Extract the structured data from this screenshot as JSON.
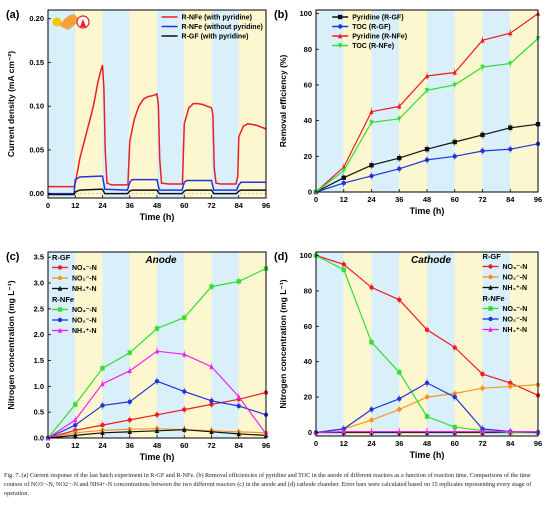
{
  "caption": "Fig. 7. (a) Current response of the last batch experiment in R-GF and R-NFe. (b) Removal efficiencies of pyridine and TOC in the anode of different reactors as a function of reaction time. Comparisons of the time courses of NO3−-N, NO2−-N and NH4+-N concentrations between the two different reactors (c) in the anode and (d) cathode chamber. Error bars were calculated based on 15 replicates representing every stage of operation.",
  "colors": {
    "blue_band": "#d9f0fb",
    "yellow_band": "#fdf7cf",
    "red": "#ee1c24",
    "blue": "#2233dd",
    "black": "#111111",
    "green": "#33dd33",
    "orange": "#f7931e",
    "magenta": "#ee22ee"
  },
  "chart_data": [
    {
      "panel": "(a)",
      "type": "line",
      "xlabel": "Time (h)",
      "ylabel": "Current density (mA cm⁻²)",
      "xlim": [
        0,
        96
      ],
      "ylim": [
        -0.005,
        0.21
      ],
      "xticks": [
        0,
        12,
        24,
        36,
        48,
        60,
        72,
        84,
        96
      ],
      "yticks": [
        0.0,
        0.05,
        0.1,
        0.15,
        0.2
      ],
      "ytick_labels": [
        "0.00",
        "0.05",
        "0.10",
        "0.15",
        "0.20"
      ],
      "legend_position": "top-right",
      "series": [
        {
          "name": "R-NFe (with pyridine)",
          "color": "red",
          "x": [
            0,
            11.5,
            12,
            14,
            17,
            20,
            22,
            23.2,
            24,
            24.6,
            25.2,
            26,
            28,
            31,
            34,
            35.2,
            36,
            38,
            40,
            42,
            44,
            46,
            47.2,
            48,
            48.6,
            49.2,
            50,
            53,
            57,
            59.2,
            60,
            62,
            64,
            66,
            68,
            70,
            71.2,
            72,
            72.6,
            73.2,
            74,
            76,
            80,
            82.8,
            83.6,
            84,
            86,
            88,
            90,
            92,
            94,
            95,
            96
          ],
          "y": [
            0.008,
            0.008,
            0.012,
            0.04,
            0.07,
            0.1,
            0.128,
            0.14,
            0.147,
            0.12,
            0.05,
            0.012,
            0.01,
            0.01,
            0.01,
            0.01,
            0.06,
            0.085,
            0.1,
            0.108,
            0.111,
            0.112,
            0.113,
            0.114,
            0.1,
            0.04,
            0.012,
            0.011,
            0.011,
            0.011,
            0.08,
            0.098,
            0.103,
            0.103,
            0.102,
            0.1,
            0.099,
            0.098,
            0.09,
            0.03,
            0.012,
            0.011,
            0.011,
            0.011,
            0.02,
            0.065,
            0.077,
            0.08,
            0.079,
            0.078,
            0.076,
            0.075,
            0.074
          ]
        },
        {
          "name": "R-NFe (without pyridine)",
          "color": "blue",
          "x": [
            0,
            11.5,
            12,
            14,
            23,
            24,
            25,
            35,
            36,
            37,
            47,
            48,
            49,
            59,
            60,
            61,
            71,
            72,
            73,
            83,
            84,
            85,
            96
          ],
          "y": [
            0.0,
            0.0,
            0.016,
            0.019,
            0.02,
            0.02,
            0.005,
            0.004,
            0.013,
            0.016,
            0.016,
            0.016,
            0.004,
            0.004,
            0.013,
            0.015,
            0.015,
            0.015,
            0.004,
            0.004,
            0.01,
            0.013,
            0.013
          ]
        },
        {
          "name": "R-GF (with pyridine)",
          "color": "black",
          "x": [
            0,
            11.5,
            12,
            14,
            23,
            24,
            25,
            35,
            36,
            37,
            47,
            48,
            49,
            59,
            60,
            61,
            71,
            72,
            73,
            83,
            84,
            85,
            96
          ],
          "y": [
            -0.001,
            -0.001,
            0.002,
            0.004,
            0.005,
            0.005,
            0.0,
            0.0,
            0.003,
            0.004,
            0.004,
            0.004,
            0.0,
            0.0,
            0.003,
            0.004,
            0.004,
            0.004,
            0.0,
            0.0,
            0.003,
            0.004,
            0.004
          ]
        }
      ]
    },
    {
      "panel": "(b)",
      "type": "line",
      "xlabel": "Time (h)",
      "ylabel": "Removal efficiency (%)",
      "xlim": [
        0,
        96
      ],
      "ylim": [
        0,
        102
      ],
      "xticks": [
        0,
        12,
        24,
        36,
        48,
        60,
        72,
        84,
        96
      ],
      "yticks": [
        0,
        20,
        40,
        60,
        80,
        100
      ],
      "legend_position": "top-left",
      "x": [
        0,
        12,
        24,
        36,
        48,
        60,
        72,
        84,
        96
      ],
      "series": [
        {
          "name": "Pyridine (R-GF)",
          "color": "black",
          "marker": "square",
          "values": [
            0,
            8,
            15,
            19,
            24,
            28,
            32,
            36,
            38
          ]
        },
        {
          "name": "TOC (R-GF)",
          "color": "blue",
          "marker": "circle",
          "values": [
            0,
            5,
            9,
            13,
            18,
            20,
            23,
            24,
            27
          ]
        },
        {
          "name": "Pyridine (R-NFe)",
          "color": "red",
          "marker": "triangle",
          "values": [
            0,
            14,
            45,
            48,
            65,
            67,
            85,
            89,
            100
          ]
        },
        {
          "name": "TOC (R-NFe)",
          "color": "green",
          "marker": "triangle-down",
          "values": [
            0,
            12,
            39,
            41,
            57,
            60,
            70,
            72,
            86
          ]
        }
      ]
    },
    {
      "panel": "(c)",
      "type": "line",
      "title": "Anode",
      "xlabel": "Time (h)",
      "ylabel": "Nitrogen concentration (mg L⁻¹)",
      "xlim": [
        0,
        96
      ],
      "ylim": [
        0,
        3.6
      ],
      "xticks": [
        0,
        12,
        24,
        36,
        48,
        60,
        72,
        84,
        96
      ],
      "yticks": [
        0.0,
        0.5,
        1.0,
        1.5,
        2.0,
        2.5,
        3.0,
        3.5
      ],
      "ytick_labels": [
        "0.0",
        "0.5",
        "1.0",
        "1.5",
        "2.0",
        "2.5",
        "3.0",
        "3.5"
      ],
      "legend_groups": [
        "R-GF",
        "R-NFe"
      ],
      "legend_position": "top-left",
      "x": [
        0,
        12,
        24,
        36,
        48,
        60,
        72,
        84,
        96
      ],
      "series": [
        {
          "group": "R-GF",
          "name": "NO₃⁻-N",
          "color": "red",
          "marker": "circle",
          "values": [
            0,
            0.15,
            0.25,
            0.35,
            0.45,
            0.55,
            0.65,
            0.75,
            0.88
          ]
        },
        {
          "group": "R-GF",
          "name": "NO₂⁻-N",
          "color": "orange",
          "marker": "circle",
          "values": [
            0,
            0.1,
            0.15,
            0.17,
            0.18,
            0.16,
            0.14,
            0.12,
            0.1
          ]
        },
        {
          "group": "R-GF",
          "name": "NH₄⁺-N",
          "color": "black",
          "marker": "triangle",
          "values": [
            0,
            0.05,
            0.1,
            0.12,
            0.14,
            0.16,
            0.12,
            0.08,
            0.05
          ]
        },
        {
          "group": "R-NFe",
          "name": "NO₃⁻-N",
          "color": "green",
          "marker": "square",
          "values": [
            0,
            0.65,
            1.35,
            1.65,
            2.12,
            2.33,
            2.93,
            3.03,
            3.28
          ]
        },
        {
          "group": "R-NFe",
          "name": "NO₂⁻-N",
          "color": "blue",
          "marker": "circle",
          "values": [
            0,
            0.25,
            0.63,
            0.7,
            1.1,
            0.9,
            0.72,
            0.62,
            0.45
          ]
        },
        {
          "group": "R-NFe",
          "name": "NH₄⁺-N",
          "color": "magenta",
          "marker": "triangle",
          "values": [
            0,
            0.35,
            1.05,
            1.3,
            1.68,
            1.62,
            1.38,
            0.8,
            0.08
          ]
        }
      ]
    },
    {
      "panel": "(d)",
      "type": "line",
      "title": "Cathode",
      "xlabel": "Time (h)",
      "ylabel": "Nitrogen concentration (mg L⁻¹)",
      "xlim": [
        0,
        96
      ],
      "ylim": [
        -2,
        102
      ],
      "xticks": [
        0,
        12,
        24,
        36,
        48,
        60,
        72,
        84,
        96
      ],
      "yticks": [
        0,
        20,
        40,
        60,
        80,
        100
      ],
      "legend_groups": [
        "R-GF",
        "R-NFe"
      ],
      "legend_position": "top-right",
      "x": [
        0,
        12,
        24,
        36,
        48,
        60,
        72,
        84,
        96
      ],
      "series": [
        {
          "group": "R-GF",
          "name": "NO₃⁻-N",
          "color": "red",
          "marker": "circle",
          "values": [
            100,
            95,
            82,
            75,
            58,
            48,
            33,
            28,
            21
          ]
        },
        {
          "group": "R-GF",
          "name": "NO₂⁻-N",
          "color": "orange",
          "marker": "circle",
          "values": [
            0,
            2,
            7,
            13,
            20,
            22,
            25,
            26,
            27
          ]
        },
        {
          "group": "R-GF",
          "name": "NH₄⁺-N",
          "color": "black",
          "marker": "triangle",
          "values": [
            0,
            0,
            0,
            0,
            0,
            0,
            0,
            0,
            0
          ]
        },
        {
          "group": "R-NFe",
          "name": "NO₃⁻-N",
          "color": "green",
          "marker": "square",
          "values": [
            100,
            92,
            51,
            34,
            9,
            3,
            1,
            0,
            0
          ]
        },
        {
          "group": "R-NFe",
          "name": "NO₂⁻-N",
          "color": "blue",
          "marker": "circle",
          "values": [
            0,
            2,
            13,
            19,
            28,
            20,
            2,
            0.5,
            0
          ]
        },
        {
          "group": "R-NFe",
          "name": "NH₄⁺-N",
          "color": "magenta",
          "marker": "triangle",
          "values": [
            0,
            0.5,
            0.5,
            0.5,
            0.5,
            0.5,
            0.5,
            0.5,
            0.5
          ]
        }
      ]
    }
  ]
}
